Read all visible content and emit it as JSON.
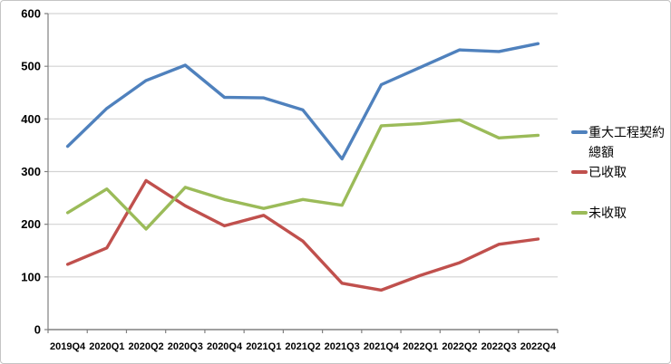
{
  "chart_data": {
    "type": "line",
    "title": "",
    "xlabel": "",
    "ylabel": "",
    "categories": [
      "2019Q4",
      "2020Q1",
      "2020Q2",
      "2020Q3",
      "2020Q4",
      "2021Q1",
      "2021Q2",
      "2021Q3",
      "2021Q4",
      "2022Q1",
      "2022Q2",
      "2022Q3",
      "2022Q4"
    ],
    "series": [
      {
        "name": "重大工程契約總額",
        "legend_lines": [
          "重大工程契約",
          "總額"
        ],
        "color": "#4F81BD",
        "values": [
          348,
          420,
          473,
          502,
          441,
          440,
          417,
          324,
          465,
          498,
          531,
          528,
          543
        ]
      },
      {
        "name": "已收取",
        "legend_lines": [
          "已收取"
        ],
        "color": "#C0504D",
        "values": [
          124,
          155,
          283,
          235,
          197,
          217,
          168,
          88,
          75,
          103,
          127,
          162,
          172
        ]
      },
      {
        "name": "未收取",
        "legend_lines": [
          "未收取"
        ],
        "color": "#9BBB59",
        "values": [
          222,
          267,
          191,
          270,
          247,
          230,
          247,
          236,
          387,
          391,
          398,
          364,
          369
        ]
      }
    ],
    "ylim": [
      0,
      600
    ],
    "ytick_step": 100,
    "yticks": [
      "0",
      "100",
      "200",
      "300",
      "400",
      "500",
      "600"
    ],
    "grid": true,
    "legend_position": "right"
  },
  "styles": {
    "background": "#FFFFFF",
    "frame_border": "#C4C4C4",
    "gridline": "#D3D3D3",
    "axis": "#808080",
    "tick_label": "#000000"
  }
}
